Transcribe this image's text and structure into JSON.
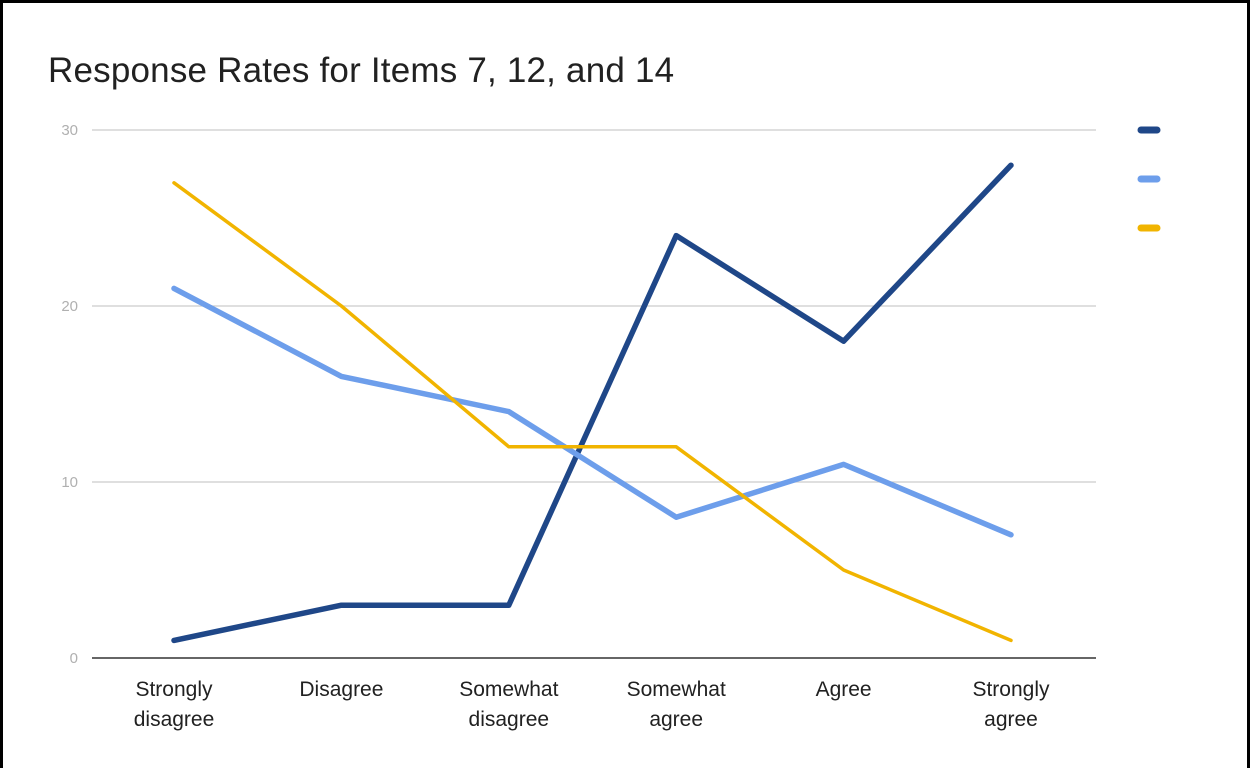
{
  "chart_data": {
    "type": "line",
    "title": "Response Rates for Items 7, 12, and 14",
    "categories": [
      [
        "Strongly",
        "disagree"
      ],
      [
        "Disagree"
      ],
      [
        "Somewhat",
        "disagree"
      ],
      [
        "Somewhat",
        "agree"
      ],
      [
        "Agree"
      ],
      [
        "Strongly",
        "agree"
      ]
    ],
    "ylim": [
      0,
      30
    ],
    "yticks": [
      0,
      10,
      20,
      30
    ],
    "grid": true,
    "legend_position": "right",
    "series": [
      {
        "name": "",
        "color": "#1f4788",
        "values": [
          1,
          3,
          3,
          24,
          18,
          28
        ]
      },
      {
        "name": "",
        "color": "#6d9eeb",
        "values": [
          21,
          16,
          14,
          8,
          11,
          7
        ]
      },
      {
        "name": "",
        "color": "#f1b400",
        "values": [
          27,
          20,
          12,
          12,
          5,
          1
        ]
      }
    ]
  }
}
